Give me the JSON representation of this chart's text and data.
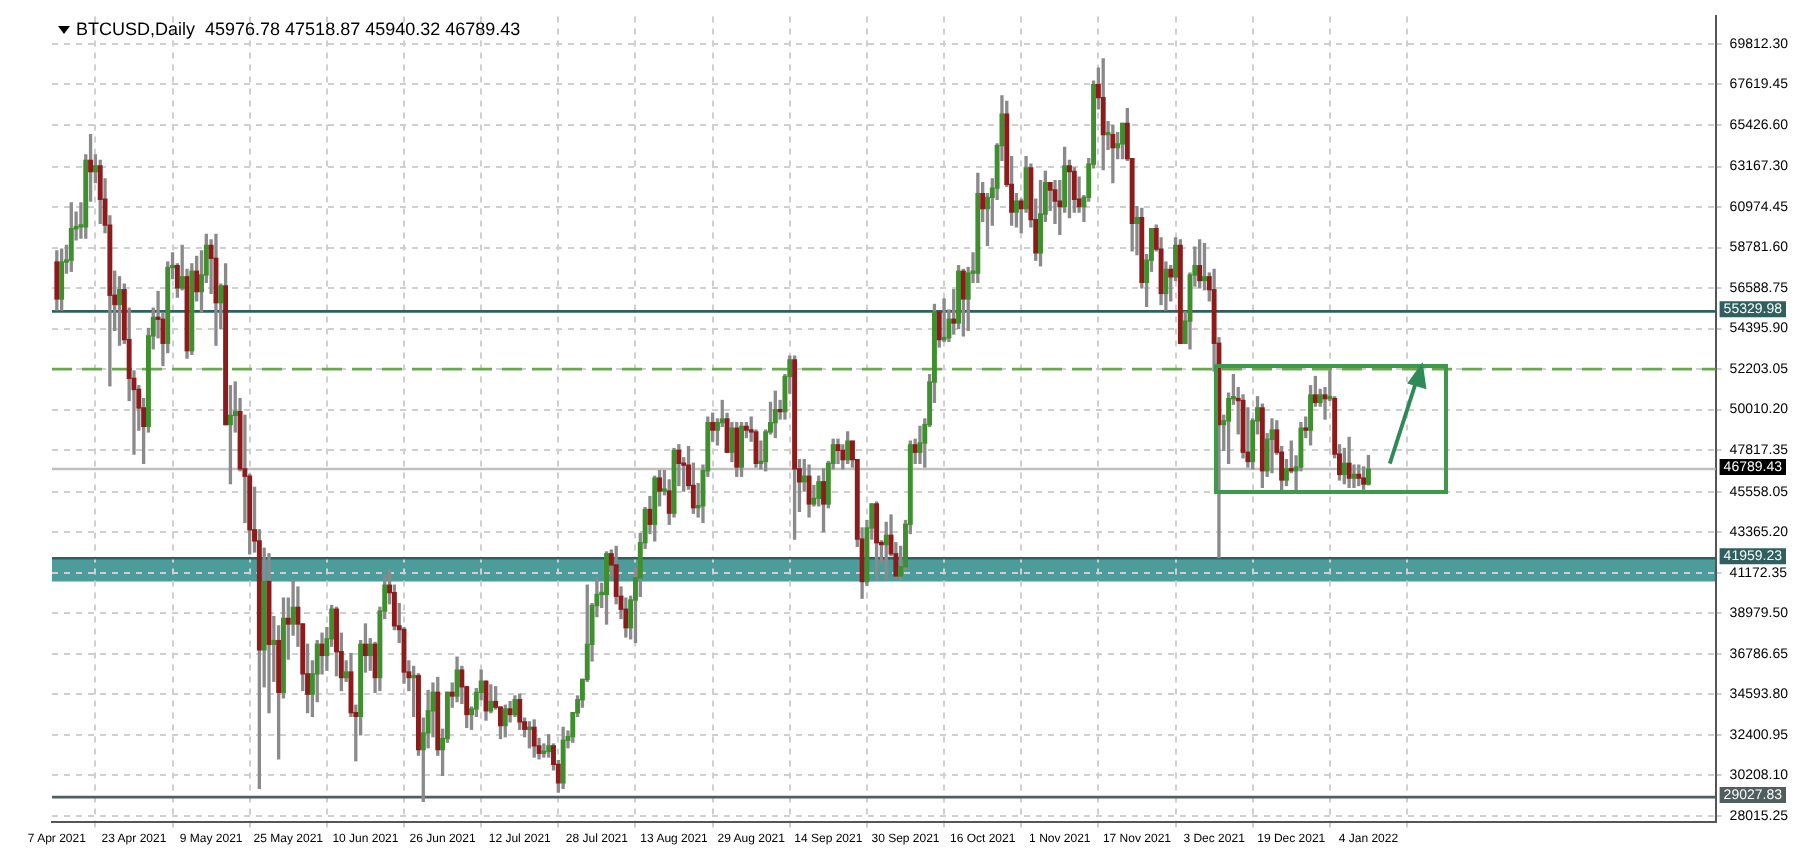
{
  "chart_data": {
    "type": "candlestick",
    "title": "BTCUSD,Daily  45976.78 47518.87 45940.32 46789.43",
    "x": [
      "2021-04-07",
      "2021-04-08",
      "2021-04-09",
      "2021-04-10",
      "2021-04-11",
      "2021-04-12",
      "2021-04-13",
      "2021-04-14",
      "2021-04-15",
      "2021-04-16",
      "2021-04-17",
      "2021-04-18",
      "2021-04-19",
      "2021-04-20",
      "2021-04-21",
      "2021-04-22",
      "2021-04-23",
      "2021-04-24",
      "2021-04-25",
      "2021-04-26",
      "2021-04-27",
      "2021-04-28",
      "2021-04-29",
      "2021-04-30",
      "2021-05-01",
      "2021-05-02",
      "2021-05-03",
      "2021-05-04",
      "2021-05-05",
      "2021-05-06",
      "2021-05-07",
      "2021-05-08",
      "2021-05-09",
      "2021-05-10",
      "2021-05-11",
      "2021-05-12",
      "2021-05-13",
      "2021-05-14",
      "2021-05-15",
      "2021-05-16",
      "2021-05-17",
      "2021-05-18",
      "2021-05-19",
      "2021-05-20",
      "2021-05-21",
      "2021-05-22",
      "2021-05-23",
      "2021-05-24",
      "2021-05-25",
      "2021-05-26",
      "2021-05-27",
      "2021-05-28",
      "2021-05-29",
      "2021-05-30",
      "2021-05-31",
      "2021-06-01",
      "2021-06-02",
      "2021-06-03",
      "2021-06-04",
      "2021-06-05",
      "2021-06-06",
      "2021-06-07",
      "2021-06-08",
      "2021-06-09",
      "2021-06-10",
      "2021-06-11",
      "2021-06-12",
      "2021-06-13",
      "2021-06-14",
      "2021-06-15",
      "2021-06-16",
      "2021-06-17",
      "2021-06-18",
      "2021-06-19",
      "2021-06-20",
      "2021-06-21",
      "2021-06-22",
      "2021-06-23",
      "2021-06-24",
      "2021-06-25",
      "2021-06-26",
      "2021-06-27",
      "2021-06-28",
      "2021-06-29",
      "2021-06-30",
      "2021-07-01",
      "2021-07-02",
      "2021-07-03",
      "2021-07-04",
      "2021-07-05",
      "2021-07-06",
      "2021-07-07",
      "2021-07-08",
      "2021-07-09",
      "2021-07-10",
      "2021-07-11",
      "2021-07-12",
      "2021-07-13",
      "2021-07-14",
      "2021-07-15",
      "2021-07-16",
      "2021-07-17",
      "2021-07-18",
      "2021-07-19",
      "2021-07-20",
      "2021-07-21",
      "2021-07-22",
      "2021-07-23",
      "2021-07-24",
      "2021-07-25",
      "2021-07-26",
      "2021-07-27",
      "2021-07-28",
      "2021-07-29",
      "2021-07-30",
      "2021-07-31",
      "2021-08-01",
      "2021-08-02",
      "2021-08-03",
      "2021-08-04",
      "2021-08-05",
      "2021-08-06",
      "2021-08-07",
      "2021-08-08",
      "2021-08-09",
      "2021-08-10",
      "2021-08-11",
      "2021-08-12",
      "2021-08-13",
      "2021-08-14",
      "2021-08-15",
      "2021-08-16",
      "2021-08-17",
      "2021-08-18",
      "2021-08-19",
      "2021-08-20",
      "2021-08-21",
      "2021-08-22",
      "2021-08-23",
      "2021-08-24",
      "2021-08-25",
      "2021-08-26",
      "2021-08-27",
      "2021-08-28",
      "2021-08-29",
      "2021-08-30",
      "2021-08-31",
      "2021-09-01",
      "2021-09-02",
      "2021-09-03",
      "2021-09-04",
      "2021-09-05",
      "2021-09-06",
      "2021-09-07",
      "2021-09-08",
      "2021-09-09",
      "2021-09-10",
      "2021-09-11",
      "2021-09-12",
      "2021-09-13",
      "2021-09-14",
      "2021-09-15",
      "2021-09-16",
      "2021-09-17",
      "2021-09-18",
      "2021-09-19",
      "2021-09-20",
      "2021-09-21",
      "2021-09-22",
      "2021-09-23",
      "2021-09-24",
      "2021-09-25",
      "2021-09-26",
      "2021-09-27",
      "2021-09-28",
      "2021-09-29",
      "2021-09-30",
      "2021-10-01",
      "2021-10-02",
      "2021-10-03",
      "2021-10-04",
      "2021-10-05",
      "2021-10-06",
      "2021-10-07",
      "2021-10-08",
      "2021-10-09",
      "2021-10-10",
      "2021-10-11",
      "2021-10-12",
      "2021-10-13",
      "2021-10-14",
      "2021-10-15",
      "2021-10-16",
      "2021-10-17",
      "2021-10-18",
      "2021-10-19",
      "2021-10-20",
      "2021-10-21",
      "2021-10-22",
      "2021-10-23",
      "2021-10-24",
      "2021-10-25",
      "2021-10-26",
      "2021-10-27",
      "2021-10-28",
      "2021-10-29",
      "2021-10-30",
      "2021-10-31",
      "2021-11-01",
      "2021-11-02",
      "2021-11-03",
      "2021-11-04",
      "2021-11-05",
      "2021-11-06",
      "2021-11-07",
      "2021-11-08",
      "2021-11-09",
      "2021-11-10",
      "2021-11-11",
      "2021-11-12",
      "2021-11-13",
      "2021-11-14",
      "2021-11-15",
      "2021-11-16",
      "2021-11-17",
      "2021-11-18",
      "2021-11-19",
      "2021-11-20",
      "2021-11-21",
      "2021-11-22",
      "2021-11-23",
      "2021-11-24",
      "2021-11-25",
      "2021-11-26",
      "2021-11-27",
      "2021-11-28",
      "2021-11-29",
      "2021-11-30",
      "2021-12-01",
      "2021-12-02",
      "2021-12-03",
      "2021-12-04",
      "2021-12-05",
      "2021-12-06",
      "2021-12-07",
      "2021-12-08",
      "2021-12-09",
      "2021-12-10",
      "2021-12-11",
      "2021-12-12",
      "2021-12-13",
      "2021-12-14",
      "2021-12-15",
      "2021-12-16",
      "2021-12-17",
      "2021-12-18",
      "2021-12-19",
      "2021-12-20",
      "2021-12-21",
      "2021-12-22",
      "2021-12-23",
      "2021-12-24",
      "2021-12-25",
      "2021-12-26",
      "2021-12-27",
      "2021-12-28",
      "2021-12-29",
      "2021-12-30",
      "2021-12-31",
      "2022-01-01",
      "2022-01-02",
      "2022-01-03",
      "2022-01-04"
    ],
    "ohlc": [
      [
        58000,
        58600,
        55400,
        56000
      ],
      [
        56000,
        58700,
        55400,
        58000
      ],
      [
        58000,
        58900,
        57400,
        58100
      ],
      [
        58100,
        61200,
        57500,
        59800
      ],
      [
        59800,
        60700,
        59200,
        59900
      ],
      [
        59900,
        61200,
        59300,
        59900
      ],
      [
        59900,
        63800,
        59300,
        63500
      ],
      [
        63500,
        64900,
        61300,
        62900
      ],
      [
        62900,
        63800,
        62300,
        63200
      ],
      [
        63200,
        63500,
        60100,
        61400
      ],
      [
        61400,
        62500,
        59600,
        60000
      ],
      [
        60000,
        60500,
        51300,
        56200
      ],
      [
        56200,
        57500,
        54300,
        55700
      ],
      [
        55700,
        57200,
        53500,
        56500
      ],
      [
        56500,
        56800,
        53600,
        53800
      ],
      [
        53800,
        55500,
        50500,
        51700
      ],
      [
        51700,
        52100,
        47600,
        51100
      ],
      [
        51100,
        51300,
        48900,
        50100
      ],
      [
        50100,
        50600,
        47100,
        49100
      ],
      [
        49100,
        54400,
        48800,
        54000
      ],
      [
        54000,
        55500,
        53300,
        55000
      ],
      [
        55000,
        56400,
        53900,
        54900
      ],
      [
        54900,
        55200,
        52400,
        53600
      ],
      [
        53600,
        58000,
        53100,
        57700
      ],
      [
        57700,
        58500,
        57100,
        57800
      ],
      [
        57800,
        57900,
        56100,
        56600
      ],
      [
        56600,
        58900,
        56500,
        57200
      ],
      [
        57200,
        57600,
        52800,
        53200
      ],
      [
        53200,
        57900,
        53000,
        57500
      ],
      [
        57500,
        58300,
        55900,
        56400
      ],
      [
        56400,
        58600,
        55300,
        57300
      ],
      [
        57300,
        59500,
        56900,
        58900
      ],
      [
        58900,
        59200,
        56300,
        58200
      ],
      [
        58200,
        59500,
        53500,
        55800
      ],
      [
        55800,
        56800,
        54400,
        56700
      ],
      [
        56700,
        57900,
        49200,
        49200
      ],
      [
        49200,
        51300,
        46000,
        49700
      ],
      [
        49700,
        51500,
        48800,
        49900
      ],
      [
        49900,
        50600,
        46700,
        46800
      ],
      [
        46800,
        49700,
        43900,
        46400
      ],
      [
        46400,
        46500,
        42200,
        43500
      ],
      [
        43500,
        45800,
        42300,
        42900
      ],
      [
        42900,
        43500,
        29500,
        37000
      ],
      [
        37000,
        42500,
        35000,
        40700
      ],
      [
        40700,
        42200,
        33600,
        37300
      ],
      [
        37300,
        38800,
        35300,
        37500
      ],
      [
        37500,
        38300,
        31100,
        34700
      ],
      [
        34700,
        39800,
        34400,
        38700
      ],
      [
        38700,
        39800,
        36500,
        38400
      ],
      [
        38400,
        40800,
        37800,
        39300
      ],
      [
        39300,
        40400,
        37200,
        38400
      ],
      [
        38400,
        38400,
        34800,
        35700
      ],
      [
        35700,
        37300,
        33600,
        34600
      ],
      [
        34600,
        36400,
        33400,
        35700
      ],
      [
        35700,
        37500,
        34200,
        37300
      ],
      [
        37300,
        37900,
        35700,
        36700
      ],
      [
        36700,
        38200,
        35900,
        37600
      ],
      [
        37600,
        39400,
        37200,
        39200
      ],
      [
        39200,
        39300,
        35600,
        36900
      ],
      [
        36900,
        37900,
        34800,
        35500
      ],
      [
        35500,
        36400,
        35300,
        35800
      ],
      [
        35800,
        36800,
        33400,
        33600
      ],
      [
        33600,
        34000,
        31000,
        33400
      ],
      [
        33400,
        37500,
        32400,
        37300
      ],
      [
        37300,
        38400,
        35800,
        36700
      ],
      [
        36700,
        37600,
        35900,
        37300
      ],
      [
        37300,
        37400,
        34700,
        35500
      ],
      [
        35500,
        39300,
        34800,
        39100
      ],
      [
        39100,
        41000,
        38700,
        40500
      ],
      [
        40500,
        41300,
        39500,
        40100
      ],
      [
        40100,
        40500,
        38100,
        38300
      ],
      [
        38300,
        39500,
        37400,
        38100
      ],
      [
        38100,
        38200,
        35200,
        35800
      ],
      [
        35800,
        36400,
        34800,
        35500
      ],
      [
        35500,
        36100,
        33400,
        35600
      ],
      [
        35600,
        35700,
        31300,
        31600
      ],
      [
        31600,
        33300,
        28800,
        32500
      ],
      [
        32500,
        34800,
        31700,
        33700
      ],
      [
        33700,
        35200,
        32300,
        34700
      ],
      [
        34700,
        35500,
        31300,
        31600
      ],
      [
        31600,
        32700,
        30200,
        32200
      ],
      [
        32200,
        34700,
        32000,
        34700
      ],
      [
        34700,
        35200,
        33900,
        34500
      ],
      [
        34500,
        36600,
        34200,
        35900
      ],
      [
        35900,
        36100,
        34100,
        35000
      ],
      [
        35000,
        35000,
        32800,
        33500
      ],
      [
        33500,
        33900,
        32700,
        33800
      ],
      [
        33800,
        34900,
        33400,
        34700
      ],
      [
        34700,
        35900,
        34300,
        35300
      ],
      [
        35300,
        35300,
        33200,
        33700
      ],
      [
        33700,
        35100,
        33600,
        34200
      ],
      [
        34200,
        35000,
        33800,
        33900
      ],
      [
        33900,
        33900,
        32200,
        32900
      ],
      [
        32900,
        34000,
        32300,
        33800
      ],
      [
        33800,
        34200,
        33100,
        33500
      ],
      [
        33500,
        34500,
        33400,
        34300
      ],
      [
        34300,
        34600,
        32700,
        33100
      ],
      [
        33100,
        33300,
        32300,
        32700
      ],
      [
        32700,
        33100,
        31700,
        32800
      ],
      [
        32800,
        33200,
        31200,
        31800
      ],
      [
        31800,
        32200,
        31100,
        31400
      ],
      [
        31400,
        31900,
        31200,
        31500
      ],
      [
        31500,
        32400,
        31200,
        31800
      ],
      [
        31800,
        31900,
        30500,
        30800
      ],
      [
        30800,
        31000,
        29300,
        29800
      ],
      [
        29800,
        32800,
        29500,
        32100
      ],
      [
        32100,
        32600,
        31700,
        32300
      ],
      [
        32300,
        33600,
        32000,
        33600
      ],
      [
        33600,
        34500,
        33400,
        34300
      ],
      [
        34300,
        35400,
        33900,
        35400
      ],
      [
        35400,
        40500,
        35300,
        37300
      ],
      [
        37300,
        39500,
        36400,
        39400
      ],
      [
        39400,
        40900,
        38800,
        40000
      ],
      [
        40000,
        40600,
        39300,
        40000
      ],
      [
        40000,
        42300,
        38400,
        42200
      ],
      [
        42200,
        42400,
        41000,
        41600
      ],
      [
        41600,
        42600,
        39500,
        39900
      ],
      [
        39900,
        40400,
        38700,
        39200
      ],
      [
        39200,
        39800,
        37700,
        38200
      ],
      [
        38200,
        39900,
        37600,
        39700
      ],
      [
        39700,
        41400,
        37400,
        40900
      ],
      [
        40900,
        43300,
        39900,
        42800
      ],
      [
        42800,
        44700,
        42500,
        44600
      ],
      [
        44600,
        45300,
        43300,
        43800
      ],
      [
        43800,
        46400,
        42900,
        46300
      ],
      [
        46300,
        46700,
        44800,
        45600
      ],
      [
        45600,
        46700,
        45400,
        45600
      ],
      [
        45600,
        46200,
        43800,
        44400
      ],
      [
        44400,
        47900,
        44200,
        47800
      ],
      [
        47800,
        48100,
        45900,
        47100
      ],
      [
        47100,
        47400,
        45600,
        47000
      ],
      [
        47000,
        48000,
        45700,
        45900
      ],
      [
        45900,
        47100,
        44400,
        44700
      ],
      [
        44700,
        46000,
        44200,
        44800
      ],
      [
        44800,
        47000,
        43900,
        46700
      ],
      [
        46700,
        49600,
        46400,
        49300
      ],
      [
        49300,
        49800,
        48300,
        48900
      ],
      [
        48900,
        49500,
        48100,
        49300
      ],
      [
        49300,
        50500,
        49100,
        49500
      ],
      [
        49500,
        49800,
        47700,
        47700
      ],
      [
        47700,
        49300,
        47200,
        49000
      ],
      [
        49000,
        49300,
        46400,
        46900
      ],
      [
        46900,
        49300,
        46400,
        49100
      ],
      [
        49100,
        49300,
        48500,
        48900
      ],
      [
        48900,
        49600,
        48300,
        48800
      ],
      [
        48800,
        48900,
        46900,
        47100
      ],
      [
        47100,
        48300,
        46800,
        47200
      ],
      [
        47200,
        48900,
        46700,
        48800
      ],
      [
        48800,
        50400,
        48700,
        49300
      ],
      [
        49300,
        51000,
        48500,
        50000
      ],
      [
        50000,
        50500,
        49500,
        49900
      ],
      [
        49900,
        51900,
        49500,
        51800
      ],
      [
        51800,
        52900,
        50900,
        52700
      ],
      [
        52700,
        52900,
        43000,
        46800
      ],
      [
        46800,
        47300,
        44500,
        46100
      ],
      [
        46100,
        47300,
        45600,
        46400
      ],
      [
        46400,
        47000,
        44200,
        44900
      ],
      [
        44900,
        45900,
        44800,
        45200
      ],
      [
        45200,
        46400,
        44800,
        46100
      ],
      [
        46100,
        46800,
        43400,
        44900
      ],
      [
        44900,
        47200,
        44700,
        47100
      ],
      [
        47100,
        48400,
        46800,
        48100
      ],
      [
        48100,
        48400,
        47100,
        47800
      ],
      [
        47800,
        48100,
        46800,
        47300
      ],
      [
        47300,
        48800,
        47100,
        48300
      ],
      [
        48300,
        48300,
        46900,
        47300
      ],
      [
        47300,
        47300,
        42600,
        43000
      ],
      [
        43000,
        43600,
        39800,
        40700
      ],
      [
        40700,
        44000,
        40500,
        43600
      ],
      [
        43600,
        44900,
        43000,
        44900
      ],
      [
        44900,
        45000,
        40800,
        42800
      ],
      [
        42800,
        42900,
        41700,
        42700
      ],
      [
        42700,
        43900,
        40800,
        43200
      ],
      [
        43200,
        44300,
        42100,
        42200
      ],
      [
        42200,
        42800,
        40900,
        41000
      ],
      [
        41000,
        42600,
        40800,
        41500
      ],
      [
        41500,
        44000,
        41400,
        43800
      ],
      [
        43800,
        48300,
        43300,
        48100
      ],
      [
        48100,
        48400,
        47100,
        47700
      ],
      [
        47700,
        49100,
        47100,
        48200
      ],
      [
        48200,
        49500,
        46900,
        49200
      ],
      [
        49200,
        51900,
        49100,
        51500
      ],
      [
        51500,
        55700,
        50400,
        55300
      ],
      [
        55300,
        55300,
        53400,
        53800
      ],
      [
        53800,
        56000,
        53700,
        53900
      ],
      [
        53900,
        55400,
        53700,
        54900
      ],
      [
        54900,
        56500,
        54100,
        54700
      ],
      [
        54700,
        57800,
        54400,
        57500
      ],
      [
        57500,
        57600,
        54000,
        56000
      ],
      [
        56000,
        57700,
        54300,
        57400
      ],
      [
        57400,
        58500,
        56900,
        57400
      ],
      [
        57400,
        62800,
        56900,
        61700
      ],
      [
        61700,
        62300,
        60200,
        60900
      ],
      [
        60900,
        61700,
        58900,
        61500
      ],
      [
        61500,
        62500,
        60000,
        62000
      ],
      [
        62000,
        64400,
        61400,
        64300
      ],
      [
        64300,
        67000,
        63500,
        66000
      ],
      [
        66000,
        66700,
        62100,
        62200
      ],
      [
        62200,
        63700,
        60000,
        60700
      ],
      [
        60700,
        61700,
        59900,
        61300
      ],
      [
        61300,
        61400,
        59600,
        60900
      ],
      [
        60900,
        63700,
        60700,
        63100
      ],
      [
        63100,
        63300,
        59900,
        60300
      ],
      [
        60300,
        61400,
        58100,
        58500
      ],
      [
        58500,
        62400,
        57800,
        60600
      ],
      [
        60600,
        62900,
        60200,
        62300
      ],
      [
        62300,
        62300,
        60800,
        61900
      ],
      [
        61900,
        62400,
        60100,
        61300
      ],
      [
        61300,
        62400,
        59500,
        61000
      ],
      [
        61000,
        64200,
        60700,
        63200
      ],
      [
        63200,
        63500,
        60400,
        62900
      ],
      [
        62900,
        63100,
        60700,
        61400
      ],
      [
        61400,
        62600,
        60700,
        61000
      ],
      [
        61000,
        61600,
        60200,
        61500
      ],
      [
        61500,
        63600,
        61300,
        63300
      ],
      [
        63300,
        67800,
        63100,
        67600
      ],
      [
        67600,
        68500,
        66300,
        66900
      ],
      [
        66900,
        69000,
        63000,
        64900
      ],
      [
        64900,
        65600,
        64100,
        64900
      ],
      [
        64900,
        65400,
        62300,
        64200
      ],
      [
        64200,
        65000,
        63600,
        64400
      ],
      [
        64400,
        65500,
        63600,
        65500
      ],
      [
        65500,
        66300,
        63500,
        63600
      ],
      [
        63600,
        63600,
        58600,
        60100
      ],
      [
        60100,
        61000,
        58400,
        60400
      ],
      [
        60400,
        60900,
        56600,
        56900
      ],
      [
        56900,
        58400,
        55600,
        58100
      ],
      [
        58100,
        59800,
        57500,
        59800
      ],
      [
        59800,
        60000,
        58600,
        58700
      ],
      [
        58700,
        59300,
        55700,
        56300
      ],
      [
        56300,
        58000,
        55400,
        57600
      ],
      [
        57600,
        57800,
        55900,
        57200
      ],
      [
        57200,
        59300,
        57000,
        58900
      ],
      [
        58900,
        59200,
        53600,
        53600
      ],
      [
        53600,
        55300,
        53600,
        54800
      ],
      [
        54800,
        57400,
        53300,
        57300
      ],
      [
        57300,
        58800,
        56700,
        57800
      ],
      [
        57800,
        59200,
        56600,
        57000
      ],
      [
        57000,
        59000,
        56500,
        57200
      ],
      [
        57200,
        57400,
        55900,
        56500
      ],
      [
        56500,
        57600,
        52100,
        53600
      ],
      [
        53600,
        53900,
        42000,
        49200
      ],
      [
        49200,
        49700,
        47800,
        49400
      ],
      [
        49400,
        50900,
        47100,
        50600
      ],
      [
        50600,
        51900,
        50300,
        50600
      ],
      [
        50600,
        51200,
        48700,
        50500
      ],
      [
        50500,
        50800,
        47400,
        47700
      ],
      [
        47700,
        50100,
        46900,
        47200
      ],
      [
        47200,
        49500,
        46800,
        49400
      ],
      [
        49400,
        50700,
        48700,
        50100
      ],
      [
        50100,
        50300,
        45800,
        46700
      ],
      [
        46700,
        48700,
        46400,
        48400
      ],
      [
        48400,
        49500,
        46600,
        48900
      ],
      [
        48900,
        49400,
        47600,
        47700
      ],
      [
        47700,
        48000,
        45600,
        46200
      ],
      [
        46200,
        47300,
        45900,
        46800
      ],
      [
        46800,
        48300,
        46600,
        46700
      ],
      [
        46700,
        47500,
        45600,
        46900
      ],
      [
        46900,
        49300,
        46700,
        49000
      ],
      [
        49000,
        49600,
        48500,
        48900
      ],
      [
        48900,
        51300,
        48100,
        50800
      ],
      [
        50800,
        51800,
        50200,
        50400
      ],
      [
        50400,
        51100,
        50200,
        50800
      ],
      [
        50800,
        51200,
        49500,
        50600
      ],
      [
        50600,
        52100,
        50500,
        50600
      ],
      [
        50600,
        50700,
        47400,
        47600
      ],
      [
        47600,
        48100,
        46200,
        46500
      ],
      [
        46500,
        47900,
        46000,
        47100
      ],
      [
        47100,
        48500,
        45800,
        46300
      ],
      [
        46300,
        47000,
        45800,
        46500
      ],
      [
        46500,
        47000,
        45900,
        46300
      ],
      [
        46300,
        46900,
        45700,
        45980
      ],
      [
        45976.78,
        47518.87,
        45940.32,
        46789.43
      ]
    ],
    "xlim": [
      "2021-04-06",
      "2022-03-17"
    ],
    "xticks": [
      {
        "value": "2021-04-07",
        "label": "7 Apr 2021"
      },
      {
        "value": "2021-04-23",
        "label": "23 Apr 2021"
      },
      {
        "value": "2021-05-09",
        "label": "9 May 2021"
      },
      {
        "value": "2021-05-25",
        "label": "25 May 2021"
      },
      {
        "value": "2021-06-10",
        "label": "10 Jun 2021"
      },
      {
        "value": "2021-06-26",
        "label": "26 Jun 2021"
      },
      {
        "value": "2021-07-12",
        "label": "12 Jul 2021"
      },
      {
        "value": "2021-07-28",
        "label": "28 Jul 2021"
      },
      {
        "value": "2021-08-13",
        "label": "13 Aug 2021"
      },
      {
        "value": "2021-08-29",
        "label": "29 Aug 2021"
      },
      {
        "value": "2021-09-14",
        "label": "14 Sep 2021"
      },
      {
        "value": "2021-09-30",
        "label": "30 Sep 2021"
      },
      {
        "value": "2021-10-16",
        "label": "16 Oct 2021"
      },
      {
        "value": "2021-11-01",
        "label": "1 Nov 2021"
      },
      {
        "value": "2021-11-17",
        "label": "17 Nov 2021"
      },
      {
        "value": "2021-12-03",
        "label": "3 Dec 2021"
      },
      {
        "value": "2021-12-19",
        "label": "19 Dec 2021"
      },
      {
        "value": "2022-01-04",
        "label": "4 Jan 2022"
      }
    ],
    "ylim": [
      27700,
      71300
    ],
    "yticks": [
      {
        "value": 28015.25,
        "label": "28015.25"
      },
      {
        "value": 30208.1,
        "label": "30208.10"
      },
      {
        "value": 32400.95,
        "label": "32400.95"
      },
      {
        "value": 34593.8,
        "label": "34593.80"
      },
      {
        "value": 36786.65,
        "label": "36786.65"
      },
      {
        "value": 38979.5,
        "label": "38979.50"
      },
      {
        "value": 41172.35,
        "label": "41172.35"
      },
      {
        "value": 43365.2,
        "label": "43365.20"
      },
      {
        "value": 45558.05,
        "label": "45558.05"
      },
      {
        "value": 47817.35,
        "label": "47817.35"
      },
      {
        "value": 50010.2,
        "label": "50010.20"
      },
      {
        "value": 52203.05,
        "label": "52203.05"
      },
      {
        "value": 54395.9,
        "label": "54395.90"
      },
      {
        "value": 56588.75,
        "label": "56588.75"
      },
      {
        "value": 58781.6,
        "label": "58781.60"
      },
      {
        "value": 60974.45,
        "label": "60974.45"
      },
      {
        "value": 63167.3,
        "label": "63167.30"
      },
      {
        "value": 65426.6,
        "label": "65426.60"
      },
      {
        "value": 67619.45,
        "label": "67619.45"
      },
      {
        "value": 69812.3,
        "label": "69812.30"
      }
    ],
    "grid": true,
    "bands": [
      {
        "axis": "y",
        "from": 40700,
        "to": 41959.23,
        "color": "#2e8b8b"
      }
    ],
    "ref_lines": [
      {
        "axis": "y",
        "value": 55329.98,
        "label": "55329.98",
        "color": "#2f5f5f"
      },
      {
        "axis": "y",
        "value": 52203,
        "color": "#6aa84f",
        "line_style": "dashed"
      },
      {
        "axis": "y",
        "value": 46789.43,
        "label": "46789.43",
        "color": "#c0c0c0"
      },
      {
        "axis": "y",
        "value": 41959.23,
        "label": "41959.23",
        "color": "#2f5f5f"
      },
      {
        "axis": "y",
        "value": 29027.83,
        "label": "29027.83",
        "color": "#4f5f5f"
      }
    ]
  }
}
